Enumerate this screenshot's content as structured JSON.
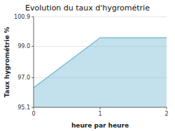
{
  "chart_data": {
    "type": "area",
    "title": "Evolution du taux d'hygrométrie",
    "xlabel": "heure par heure",
    "ylabel": "Taux hygrométrie %",
    "x": [
      0,
      1,
      2
    ],
    "values": [
      96.35,
      99.55,
      99.55
    ],
    "color": "#7bbcd5",
    "xlim": [
      0,
      2
    ],
    "ylim": [
      95.1,
      100.9
    ],
    "xticks": [
      0,
      1,
      2
    ],
    "yticks": [
      95.1,
      {
        "value": 97.0,
        "label": "97.0"
      },
      {
        "value": 99.0,
        "label": "99.0"
      },
      100.9
    ],
    "grid": true
  }
}
